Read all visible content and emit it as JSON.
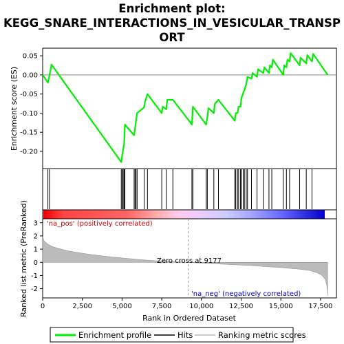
{
  "chart_data": {
    "type": "line",
    "title_lines": [
      "Enrichment plot:",
      "KEGG_SNARE_INTERACTIONS_IN_VESICULAR_TRANSP",
      "ORT"
    ],
    "es_panel": {
      "ylabel": "Enrichment score (ES)",
      "ylim": [
        -0.245,
        0.07
      ],
      "yticks": [
        -0.2,
        -0.15,
        -0.1,
        -0.05,
        0.0,
        0.05
      ],
      "ytick_labels": [
        "-0.20",
        "-0.15",
        "-0.10",
        "-0.05",
        "0.00",
        "0.05"
      ],
      "series": [
        {
          "name": "Enrichment profile",
          "color": "#00ee00",
          "x": [
            0,
            330,
            380,
            470,
            560,
            4950,
            5010,
            5070,
            5130,
            5180,
            5760,
            5820,
            5880,
            5950,
            6390,
            6450,
            6600,
            7500,
            7560,
            7780,
            7850,
            8200,
            9400,
            9460,
            10300,
            10370,
            10440,
            10780,
            10850,
            11070,
            12100,
            12160,
            12270,
            12340,
            12460,
            12520,
            12650,
            12700,
            12820,
            12900,
            13150,
            13220,
            13500,
            13560,
            13900,
            13960,
            14250,
            14310,
            14430,
            14500,
            15150,
            15210,
            15350,
            15420,
            15550,
            15620,
            16180,
            16240,
            16600,
            16670,
            16960,
            17030,
            17950
          ],
          "y": [
            0.0,
            -0.02,
            -0.011,
            0.007,
            0.027,
            -0.228,
            -0.211,
            -0.196,
            -0.18,
            -0.13,
            -0.158,
            -0.14,
            -0.12,
            -0.1,
            -0.085,
            -0.07,
            -0.05,
            -0.1,
            -0.083,
            -0.09,
            -0.065,
            -0.065,
            -0.13,
            -0.083,
            -0.13,
            -0.11,
            -0.087,
            -0.1,
            -0.075,
            -0.065,
            -0.12,
            -0.1,
            -0.1,
            -0.083,
            -0.083,
            -0.06,
            -0.045,
            -0.04,
            -0.025,
            -0.005,
            -0.01,
            0.005,
            -0.005,
            0.015,
            0.005,
            0.02,
            0.005,
            0.025,
            0.02,
            0.04,
            0.0,
            0.025,
            0.02,
            0.04,
            0.035,
            0.057,
            0.025,
            0.045,
            0.03,
            0.052,
            0.035,
            0.055,
            0.0
          ]
        }
      ]
    },
    "hits_panel": {
      "legend_name": "Hits",
      "positions": [
        330,
        430,
        4950,
        5010,
        5070,
        5130,
        5180,
        5760,
        5820,
        5880,
        5950,
        6390,
        6600,
        7500,
        7780,
        8200,
        9400,
        9460,
        10300,
        10370,
        10780,
        11070,
        12100,
        12160,
        12270,
        12340,
        12460,
        12520,
        12650,
        12700,
        12820,
        12900,
        13150,
        13500,
        13900,
        14250,
        14430,
        15150,
        15350,
        15550,
        16180,
        16600,
        16960
      ]
    },
    "ranked_panel": {
      "ylabel": "Ranked list metric (PreRanked)",
      "xlabel": "Rank in Ordered Dataset",
      "ylim": [
        -2.7,
        3.3
      ],
      "yticks": [
        -2,
        -1,
        0,
        1,
        2,
        3
      ],
      "ytick_labels": [
        "-2",
        "-1",
        "0",
        "1",
        "2",
        "3"
      ],
      "xlim": [
        0,
        18500
      ],
      "xticks": [
        0,
        2500,
        5000,
        7500,
        10000,
        12500,
        15000,
        17500
      ],
      "xtick_labels": [
        "0",
        "2,500",
        "5,000",
        "7,500",
        "10,000",
        "12,500",
        "15,000",
        "17,500"
      ],
      "legend_name": "Ranking metric scores",
      "fill_color": "#bbbbbb",
      "x": [
        0,
        100,
        300,
        600,
        1000,
        1500,
        2000,
        3000,
        4000,
        5000,
        6000,
        7000,
        8000,
        9177,
        10000,
        11000,
        12000,
        13000,
        14000,
        15000,
        16000,
        16800,
        17300,
        17600,
        17800,
        17900,
        17950
      ],
      "y": [
        1.95,
        1.6,
        1.4,
        1.2,
        1.05,
        0.9,
        0.78,
        0.6,
        0.45,
        0.33,
        0.22,
        0.13,
        0.06,
        0.0,
        -0.06,
        -0.12,
        -0.18,
        -0.25,
        -0.32,
        -0.4,
        -0.5,
        -0.62,
        -0.8,
        -1.0,
        -1.3,
        -1.8,
        -2.55
      ]
    },
    "annotations": {
      "pos_label": "'na_pos' (positively correlated)",
      "neg_label": "'na_neg' (negatively correlated)",
      "zero_cross": "Zero cross at 9177",
      "zero_cross_rank": 9177
    },
    "gradient_bar": {
      "colors": [
        "#ee0000",
        "#ff6666",
        "#ffaaaa",
        "#ffccee",
        "#eeccff",
        "#ccccff",
        "#8888ff",
        "#4444ee",
        "#0000cc"
      ]
    },
    "legend": {
      "items": [
        {
          "label": "Enrichment profile",
          "color": "#00ee00"
        },
        {
          "label": "Hits",
          "color": "#000000"
        },
        {
          "label": "Ranking metric scores",
          "color": "#bbbbbb"
        }
      ]
    },
    "n_genes": 17950
  }
}
